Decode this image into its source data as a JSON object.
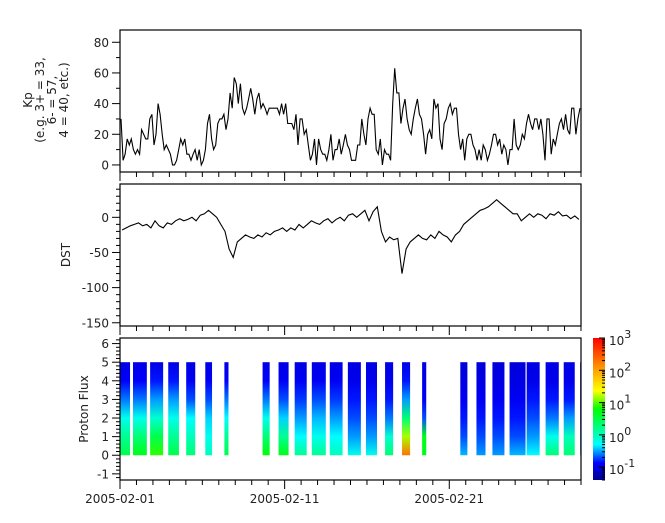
{
  "chart_data": [
    {
      "type": "line",
      "panel": "kp",
      "ylabel_lines": [
        "Kp",
        "(e.g. 3+ = 33,",
        "6- = 57,",
        "4 = 40, etc.)"
      ],
      "xlim": [
        "2005-02-01",
        "2005-03-01"
      ],
      "ylim": [
        -4.6,
        88
      ],
      "yticks": [
        0,
        20,
        40,
        60,
        80
      ],
      "yticklabels": [
        "0",
        "20",
        "40",
        "60",
        "80"
      ],
      "ygrid": false,
      "sample_hours": 3,
      "start": "2005-02-01T00:00",
      "values": [
        30,
        3,
        7,
        17,
        13,
        17,
        10,
        7,
        10,
        7,
        23,
        20,
        17,
        17,
        30,
        33,
        13,
        20,
        40,
        33,
        20,
        10,
        13,
        10,
        7,
        0,
        0,
        3,
        10,
        17,
        13,
        17,
        7,
        7,
        3,
        7,
        10,
        3,
        10,
        0,
        3,
        10,
        27,
        33,
        17,
        10,
        13,
        27,
        30,
        30,
        33,
        23,
        30,
        47,
        37,
        57,
        53,
        40,
        53,
        37,
        33,
        37,
        43,
        50,
        43,
        33,
        43,
        47,
        37,
        40,
        37,
        33,
        37,
        37,
        37,
        37,
        37,
        33,
        40,
        33,
        40,
        27,
        27,
        27,
        23,
        33,
        13,
        30,
        30,
        20,
        23,
        13,
        3,
        7,
        17,
        0,
        17,
        10,
        7,
        7,
        3,
        10,
        20,
        3,
        10,
        10,
        17,
        7,
        13,
        20,
        13,
        10,
        3,
        3,
        3,
        13,
        13,
        30,
        20,
        13,
        30,
        37,
        33,
        33,
        10,
        7,
        17,
        0,
        10,
        7,
        7,
        3,
        40,
        63,
        47,
        47,
        27,
        37,
        43,
        30,
        23,
        20,
        30,
        37,
        43,
        33,
        30,
        20,
        7,
        20,
        23,
        17,
        43,
        37,
        40,
        17,
        10,
        27,
        30,
        37,
        40,
        33,
        37,
        37,
        20,
        10,
        17,
        3,
        17,
        20,
        20,
        13,
        10,
        3,
        10,
        3,
        13,
        10,
        3,
        7,
        13,
        20,
        20,
        13,
        17,
        7,
        13,
        10,
        0,
        10,
        10,
        30,
        13,
        10,
        13,
        20,
        17,
        27,
        33,
        27,
        23,
        30,
        30,
        23,
        30,
        20,
        3,
        30,
        30,
        7,
        17,
        13,
        20,
        27,
        30,
        23,
        33,
        23,
        20,
        37,
        37,
        20,
        30,
        37
      ]
    },
    {
      "type": "line",
      "panel": "dst",
      "ylabel": "DST",
      "xlim": [
        "2005-02-01",
        "2005-03-01"
      ],
      "ylim": [
        -154.6,
        47.4
      ],
      "yticks": [
        0,
        -50,
        -100,
        -150
      ],
      "yticklabels": [
        "0",
        "-50",
        "-100",
        "-150"
      ],
      "ygrid": false,
      "sample_hours": 6,
      "start": "2005-02-01T00:00",
      "values": [
        -18,
        -15,
        -12,
        -10,
        -8,
        -12,
        -10,
        -15,
        -5,
        -12,
        -15,
        -8,
        -10,
        -5,
        -2,
        -5,
        -3,
        0,
        -5,
        3,
        5,
        10,
        5,
        0,
        -10,
        -20,
        -45,
        -57,
        -35,
        -30,
        -25,
        -28,
        -30,
        -25,
        -28,
        -22,
        -25,
        -20,
        -18,
        -15,
        -20,
        -15,
        -18,
        -10,
        -15,
        -10,
        -5,
        -8,
        -10,
        -5,
        -2,
        -8,
        -3,
        0,
        -5,
        3,
        5,
        0,
        5,
        10,
        -5,
        8,
        15,
        -20,
        -35,
        -28,
        -32,
        -30,
        -80,
        -45,
        -35,
        -30,
        -25,
        -30,
        -32,
        -25,
        -30,
        -20,
        -25,
        -28,
        -35,
        -25,
        -20,
        -10,
        -5,
        0,
        5,
        10,
        12,
        15,
        20,
        25,
        20,
        15,
        10,
        5,
        5,
        -5,
        0,
        5,
        0,
        5,
        3,
        -2,
        5,
        3,
        8,
        2,
        3,
        -2,
        2,
        -3
      ]
    },
    {
      "type": "heatmap",
      "panel": "proton",
      "ylabel": "Proton Flux",
      "xlim": [
        "2005-02-01",
        "2005-03-01"
      ],
      "ylim": [
        -1.33,
        6.3
      ],
      "yticks": [
        -1,
        0,
        1,
        2,
        3,
        4,
        5,
        6
      ],
      "yticklabels": [
        "-1",
        "0",
        "1",
        "2",
        "3",
        "4",
        "5",
        "6"
      ],
      "channels_y": [
        0,
        1,
        2,
        3,
        4,
        5
      ],
      "colorbar": {
        "scale": "log",
        "range": [
          0.04,
          1000
        ],
        "ticks": [
          1000,
          100,
          10,
          1,
          0.1
        ],
        "ticklabels": [
          {
            "base": "10",
            "exp": "3"
          },
          {
            "base": "10",
            "exp": "2"
          },
          {
            "base": "10",
            "exp": "1"
          },
          {
            "base": "10",
            "exp": "0"
          },
          {
            "base": "10",
            "exp": "-1"
          }
        ],
        "colormap": "rainbow (dark blue - blue - cyan - green - yellow - orange - red)"
      },
      "segments": [
        {
          "start": 0.02,
          "end": 0.61,
          "flux": [
            3,
            1.5,
            0.6,
            0.25,
            0.13,
            0.1
          ]
        },
        {
          "start": 0.79,
          "end": 1.63,
          "flux": [
            5,
            2,
            0.6,
            0.25,
            0.13,
            0.1
          ]
        },
        {
          "start": 1.83,
          "end": 2.62,
          "flux": [
            8,
            3,
            0.8,
            0.3,
            0.15,
            0.1
          ]
        },
        {
          "start": 2.93,
          "end": 3.58,
          "flux": [
            3,
            1.5,
            0.6,
            0.3,
            0.15,
            0.1
          ]
        },
        {
          "start": 4.02,
          "end": 4.57,
          "flux": [
            2,
            1,
            0.5,
            0.2,
            0.12,
            0.1
          ]
        },
        {
          "start": 5.18,
          "end": 5.59,
          "flux": [
            1,
            0.6,
            0.4,
            0.2,
            0.12,
            0.1
          ]
        },
        {
          "start": 6.34,
          "end": 6.59,
          "flux": [
            3,
            1.5,
            0.5,
            0.25,
            0.13,
            0.1
          ]
        },
        {
          "start": 8.66,
          "end": 9.09,
          "flux": [
            6,
            2,
            0.6,
            0.25,
            0.13,
            0.1
          ]
        },
        {
          "start": 9.63,
          "end": 10.24,
          "flux": [
            5,
            1.5,
            0.4,
            0.2,
            0.12,
            0.1
          ]
        },
        {
          "start": 10.61,
          "end": 11.34,
          "flux": [
            1.5,
            0.5,
            0.3,
            0.18,
            0.12,
            0.1
          ]
        },
        {
          "start": 11.65,
          "end": 12.5,
          "flux": [
            1.5,
            0.6,
            0.35,
            0.2,
            0.12,
            0.1
          ]
        },
        {
          "start": 12.74,
          "end": 13.52,
          "flux": [
            1,
            0.5,
            0.3,
            0.18,
            0.12,
            0.1
          ]
        },
        {
          "start": 13.84,
          "end": 14.63,
          "flux": [
            0.6,
            0.3,
            0.2,
            0.15,
            0.11,
            0.1
          ]
        },
        {
          "start": 14.94,
          "end": 15.61,
          "flux": [
            0.6,
            0.3,
            0.2,
            0.15,
            0.11,
            0.1
          ]
        },
        {
          "start": 16.1,
          "end": 16.59,
          "flux": [
            2,
            0.8,
            0.25,
            0.15,
            0.11,
            0.1
          ]
        },
        {
          "start": 17.13,
          "end": 17.62,
          "flux": [
            200,
            15,
            2,
            0.3,
            0.15,
            0.1
          ]
        },
        {
          "start": 18.35,
          "end": 18.6,
          "flux": [
            5,
            5,
            0.2,
            0.12,
            0.11,
            0.1
          ]
        },
        {
          "start": 20.67,
          "end": 21.1,
          "flux": [
            0.35,
            0.2,
            0.15,
            0.12,
            0.1,
            0.09
          ]
        },
        {
          "start": 21.65,
          "end": 22.2,
          "flux": [
            0.3,
            0.2,
            0.15,
            0.12,
            0.1,
            0.09
          ]
        },
        {
          "start": 22.62,
          "end": 23.35,
          "flux": [
            0.3,
            0.2,
            0.15,
            0.12,
            0.1,
            0.09
          ]
        },
        {
          "start": 23.66,
          "end": 24.63,
          "flux": [
            0.35,
            0.2,
            0.15,
            0.12,
            0.1,
            0.09
          ]
        },
        {
          "start": 24.7,
          "end": 25.49,
          "flux": [
            0.5,
            0.3,
            0.2,
            0.15,
            0.11,
            0.1
          ]
        },
        {
          "start": 25.85,
          "end": 26.65,
          "flux": [
            2,
            0.6,
            0.25,
            0.15,
            0.11,
            0.1
          ]
        },
        {
          "start": 26.95,
          "end": 27.62,
          "flux": [
            2,
            1,
            0.3,
            0.15,
            0.11,
            0.1
          ]
        },
        {
          "start": 27.95,
          "end": 28.0,
          "flux": [
            0.3,
            0.2,
            0.15,
            0.12,
            0.1,
            0.09
          ]
        }
      ]
    }
  ],
  "xaxis": {
    "ticklabels": [
      "2005-02-01",
      "2005-02-11",
      "2005-02-21"
    ],
    "tick_days": [
      0,
      10,
      20
    ],
    "minor_tick_every_days": 1,
    "span_days": 28
  },
  "colors": {
    "line": "#000000",
    "axis": "#000000"
  }
}
